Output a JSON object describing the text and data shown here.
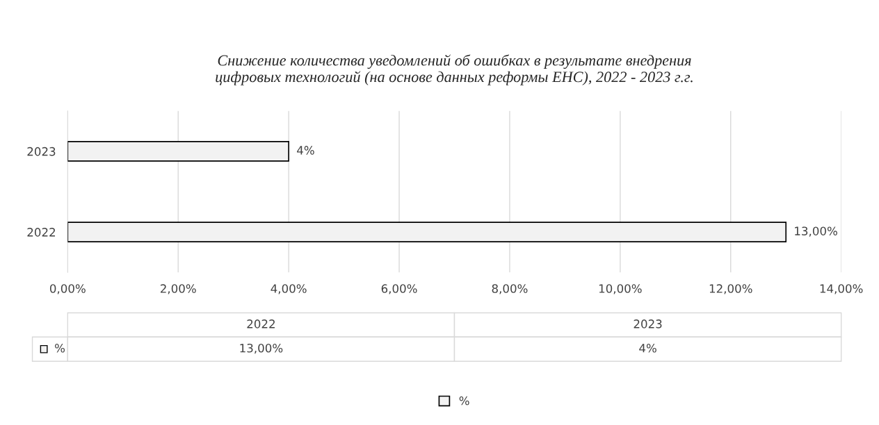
{
  "chart_data": {
    "type": "bar",
    "orientation": "horizontal",
    "title": "Снижение количества уведомлений об ошибках в результате внедрения\nцифровых технологий (на основе данных реформы ЕНС), 2022 - 2023 г.г.",
    "categories": [
      "2023",
      "2022"
    ],
    "series": [
      {
        "name": "%",
        "color": "#f2f2f2",
        "values": [
          4,
          13
        ],
        "value_labels": [
          "4%",
          "13,00%"
        ]
      }
    ],
    "xlim": [
      0,
      14
    ],
    "xticks": [
      {
        "value": 0,
        "label": "0,00%"
      },
      {
        "value": 2,
        "label": "2,00%"
      },
      {
        "value": 4,
        "label": "4,00%"
      },
      {
        "value": 6,
        "label": "6,00%"
      },
      {
        "value": 8,
        "label": "8,00%"
      },
      {
        "value": 10,
        "label": "10,00%"
      },
      {
        "value": 12,
        "label": "12,00%"
      },
      {
        "value": 14,
        "label": "14,00%"
      }
    ],
    "grid": "x",
    "legend": "bottom"
  }
}
